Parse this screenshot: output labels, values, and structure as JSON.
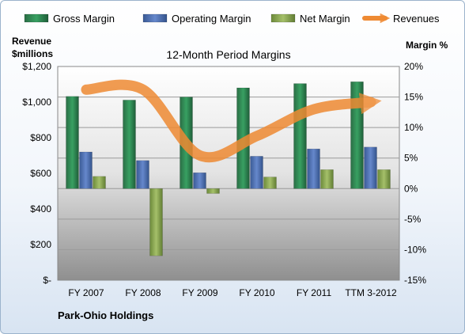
{
  "chart_data": {
    "type": "bar",
    "title": "12-Month Period Margins",
    "company": "Park-Ohio Holdings",
    "categories": [
      "FY 2007",
      "FY 2008",
      "FY 2009",
      "FY 2010",
      "FY 2011",
      "TTM 3-2012"
    ],
    "left_axis": {
      "label_line1": "Revenue",
      "label_line2": "$millions",
      "range": [
        0,
        1200
      ],
      "ticks": [
        0,
        200,
        400,
        600,
        800,
        1000,
        1200
      ],
      "tick_labels": [
        "$-",
        "$200",
        "$400",
        "$600",
        "$800",
        "$1,000",
        "$1,200"
      ]
    },
    "right_axis": {
      "label": "Margin %",
      "range": [
        -15,
        20
      ],
      "ticks": [
        -15,
        -10,
        -5,
        0,
        5,
        10,
        15,
        20
      ],
      "tick_labels": [
        "-15%",
        "-10%",
        "-5%",
        "0%",
        "5%",
        "10%",
        "15%",
        "20%"
      ]
    },
    "grid": true,
    "legend_position": "top",
    "series": [
      {
        "name": "Gross Margin",
        "kind": "bar",
        "axis": "right",
        "color": "#1e8a4c",
        "values": [
          15.1,
          14.5,
          15.0,
          16.5,
          17.2,
          17.5
        ]
      },
      {
        "name": "Operating Margin",
        "kind": "bar",
        "axis": "right",
        "color": "#4f71b5",
        "values": [
          6.0,
          4.6,
          2.6,
          5.3,
          6.5,
          6.8
        ]
      },
      {
        "name": "Net Margin",
        "kind": "bar",
        "axis": "right",
        "color": "#89a84c",
        "values": [
          2.0,
          -11.0,
          -0.8,
          1.9,
          3.1,
          3.1
        ]
      },
      {
        "name": "Revenues",
        "kind": "line",
        "axis": "left",
        "color": "#ee8a33",
        "values": [
          1070,
          1070,
          700,
          810,
          960,
          1000
        ]
      }
    ]
  }
}
